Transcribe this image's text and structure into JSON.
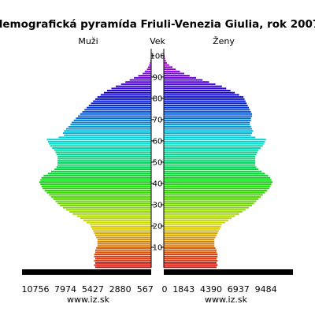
{
  "chart_data": {
    "type": "bar",
    "title": "demografická pyramída Friuli-Venezia Giulia, rok 2007",
    "left_label": "Muži",
    "center_label": "Vek",
    "right_label": "Ženy",
    "footer_left": "www.iz.sk",
    "footer_right": "www.iz.sk",
    "age_ticks": [
      "10",
      "20",
      "30",
      "40",
      "50",
      "60",
      "70",
      "80",
      "90",
      "100"
    ],
    "x_ticks_left": [
      "10756",
      "7974",
      "5427",
      "2880",
      "567"
    ],
    "x_ticks_right": [
      "0",
      "1843",
      "4390",
      "6937",
      "9484"
    ],
    "xlim": [
      0,
      12000
    ],
    "ylim": [
      0,
      104
    ],
    "series": [
      {
        "name": "Muži",
        "values": [
          5200,
          5300,
          5200,
          5300,
          5200,
          5300,
          5300,
          5200,
          5200,
          5100,
          5000,
          5000,
          5000,
          5000,
          5100,
          5200,
          5300,
          5400,
          5500,
          5600,
          5700,
          6000,
          6300,
          6600,
          6900,
          7300,
          7600,
          7900,
          8200,
          8500,
          8700,
          8900,
          9100,
          9300,
          9500,
          9700,
          9900,
          10100,
          10200,
          10300,
          10400,
          10300,
          10200,
          10000,
          9600,
          9300,
          9000,
          8800,
          8700,
          8700,
          8700,
          8700,
          8700,
          8800,
          8900,
          9000,
          9200,
          9400,
          9500,
          9600,
          9700,
          8600,
          8100,
          8200,
          8100,
          7900,
          7700,
          7500,
          7400,
          7200,
          7000,
          6800,
          6600,
          6400,
          6200,
          6000,
          5800,
          5600,
          5400,
          5200,
          5000,
          4700,
          4400,
          4100,
          3700,
          3300,
          2800,
          2400,
          2000,
          1600,
          1200,
          800,
          600,
          400,
          300,
          200,
          120,
          80,
          50,
          30,
          20
        ]
      },
      {
        "name": "Ženy",
        "values": [
          4900,
          5000,
          4900,
          5000,
          4900,
          5000,
          5000,
          4900,
          4900,
          4800,
          4700,
          4700,
          4700,
          4700,
          4800,
          4900,
          5000,
          5100,
          5200,
          5300,
          5400,
          5700,
          6000,
          6300,
          6600,
          7000,
          7300,
          7600,
          7900,
          8200,
          8400,
          8600,
          8800,
          9000,
          9200,
          9400,
          9600,
          9800,
          9900,
          10000,
          10100,
          10000,
          9900,
          9700,
          9400,
          9100,
          8800,
          8600,
          8500,
          8500,
          8500,
          8500,
          8500,
          8600,
          8700,
          8800,
          9000,
          9200,
          9300,
          9400,
          9500,
          8500,
          8100,
          8200,
          8300,
          8200,
          8100,
          8000,
          8000,
          8100,
          8100,
          8200,
          8200,
          8100,
          8000,
          7900,
          7800,
          7700,
          7600,
          7500,
          7400,
          7000,
          6600,
          6200,
          5800,
          5400,
          4800,
          4200,
          3600,
          3000,
          2400,
          1900,
          1500,
          1100,
          800,
          500,
          300,
          200,
          120,
          70,
          40
        ]
      }
    ]
  }
}
